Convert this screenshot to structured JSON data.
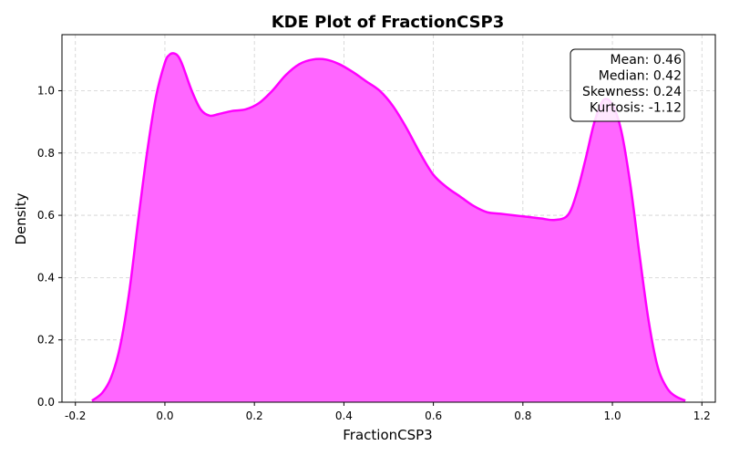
{
  "chart_data": {
    "type": "area",
    "title": "KDE Plot of FractionCSP3",
    "xlabel": "FractionCSP3",
    "ylabel": "Density",
    "xlim": [
      -0.23,
      1.23
    ],
    "ylim": [
      0,
      1.18
    ],
    "x_ticks": [
      -0.2,
      0.0,
      0.2,
      0.4,
      0.6,
      0.8,
      1.0,
      1.2
    ],
    "y_ticks": [
      0.0,
      0.2,
      0.4,
      0.6,
      0.8,
      1.0
    ],
    "x_tick_labels": [
      "-0.2",
      "0.0",
      "0.2",
      "0.4",
      "0.6",
      "0.8",
      "1.0",
      "1.2"
    ],
    "y_tick_labels": [
      "0.0",
      "0.2",
      "0.4",
      "0.6",
      "0.8",
      "1.0"
    ],
    "grid": true,
    "series": [
      {
        "color": "#ff00ff",
        "fill_color": "#ff66ff",
        "x": [
          -0.163,
          -0.14,
          -0.12,
          -0.1,
          -0.08,
          -0.06,
          -0.04,
          -0.02,
          0.0,
          0.01,
          0.02,
          0.03,
          0.04,
          0.06,
          0.08,
          0.1,
          0.12,
          0.15,
          0.18,
          0.21,
          0.24,
          0.27,
          0.3,
          0.33,
          0.36,
          0.39,
          0.42,
          0.45,
          0.48,
          0.51,
          0.54,
          0.57,
          0.6,
          0.63,
          0.66,
          0.69,
          0.72,
          0.75,
          0.78,
          0.81,
          0.84,
          0.87,
          0.9,
          0.92,
          0.94,
          0.96,
          0.98,
          1.0,
          1.02,
          1.04,
          1.06,
          1.08,
          1.1,
          1.12,
          1.14,
          1.163
        ],
        "y": [
          0.005,
          0.03,
          0.08,
          0.18,
          0.35,
          0.58,
          0.8,
          0.98,
          1.09,
          1.115,
          1.12,
          1.11,
          1.08,
          1.0,
          0.94,
          0.92,
          0.925,
          0.935,
          0.94,
          0.96,
          1.0,
          1.05,
          1.085,
          1.1,
          1.1,
          1.085,
          1.06,
          1.03,
          1.0,
          0.95,
          0.88,
          0.8,
          0.73,
          0.69,
          0.66,
          0.63,
          0.61,
          0.605,
          0.6,
          0.595,
          0.59,
          0.585,
          0.6,
          0.67,
          0.78,
          0.9,
          0.97,
          0.955,
          0.87,
          0.7,
          0.48,
          0.27,
          0.12,
          0.05,
          0.02,
          0.005
        ]
      }
    ],
    "annotations": {
      "placement": "top-right",
      "lines": [
        "Mean: 0.46",
        "Median: 0.42",
        "Skewness: 0.24",
        "Kurtosis: -1.12"
      ]
    }
  }
}
